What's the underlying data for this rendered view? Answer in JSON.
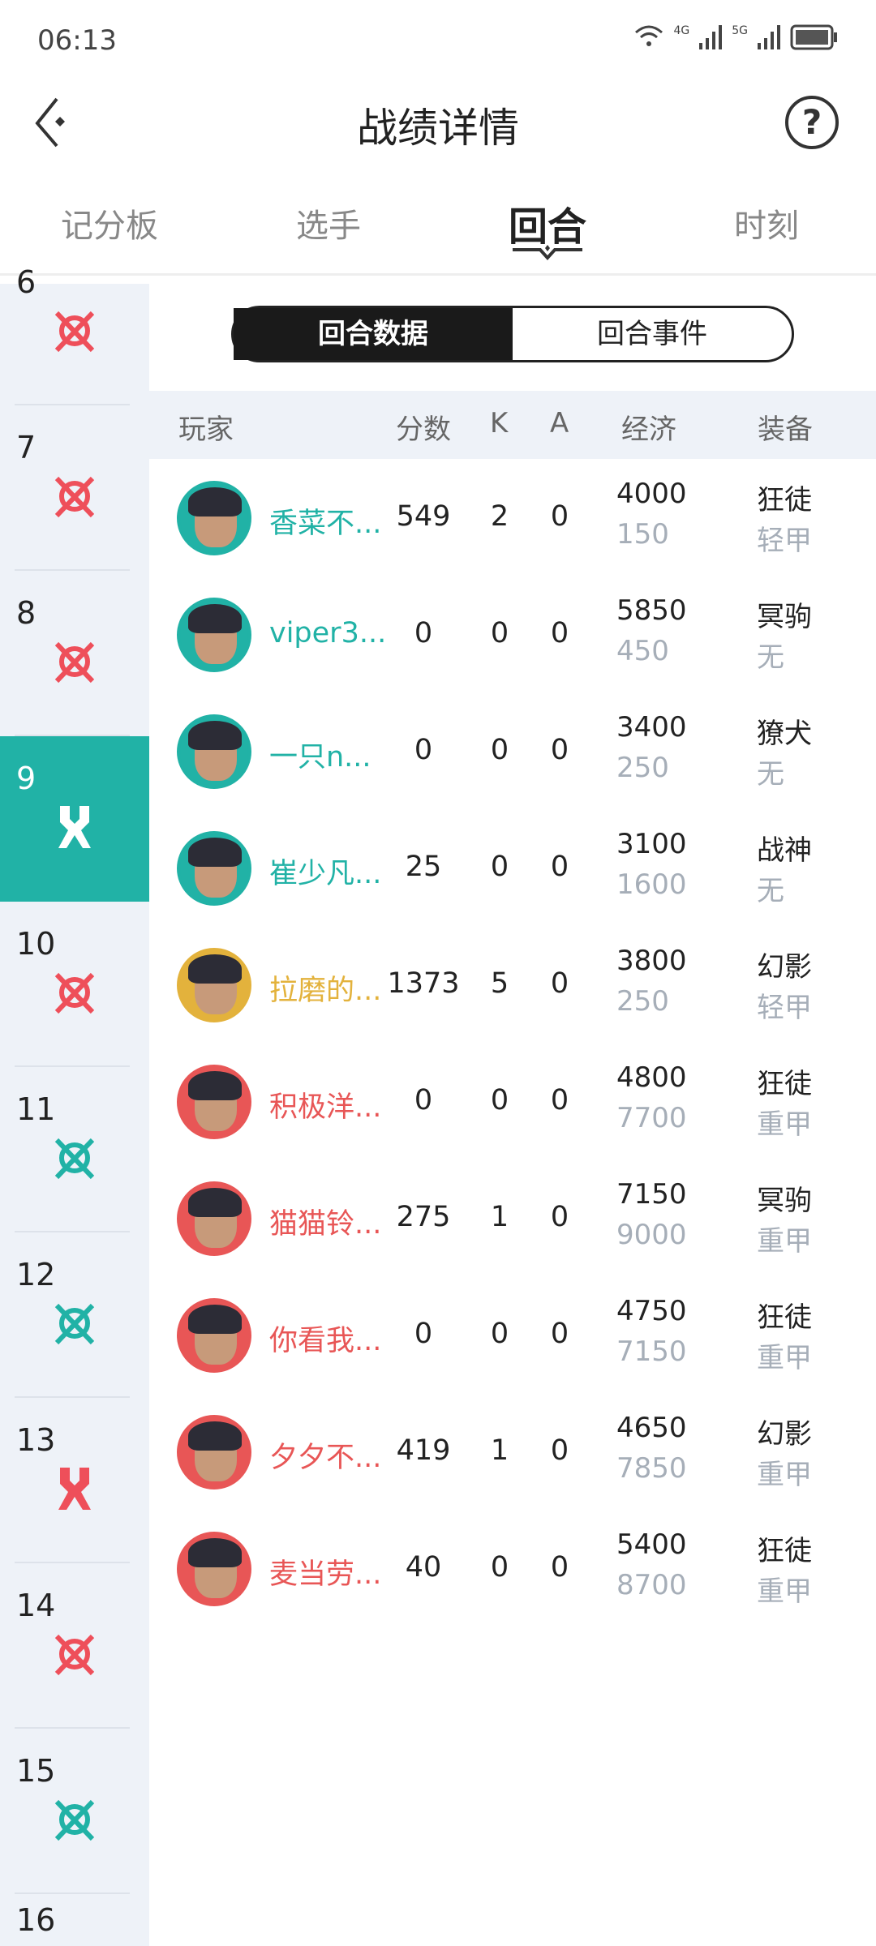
{
  "status_bar": {
    "time": "06:13",
    "net1": "4G",
    "net2": "5G"
  },
  "header": {
    "title": "战绩详情",
    "back_icon": "back-arrow-icon",
    "help_icon": "question-circle-icon",
    "help_glyph": "?"
  },
  "tabs": [
    {
      "label": "记分板",
      "active": false
    },
    {
      "label": "选手",
      "active": false
    },
    {
      "label": "回合",
      "active": true
    },
    {
      "label": "时刻",
      "active": false
    }
  ],
  "rounds": [
    {
      "num": "6",
      "icon": "elimination-icon",
      "color": "#ee4f5a"
    },
    {
      "num": "7",
      "icon": "elimination-icon",
      "color": "#ee4f5a"
    },
    {
      "num": "8",
      "icon": "elimination-icon",
      "color": "#ee4f5a"
    },
    {
      "num": "9",
      "icon": "defuse-icon",
      "color": "#ffffff",
      "selected": true
    },
    {
      "num": "10",
      "icon": "elimination-icon",
      "color": "#ee4f5a"
    },
    {
      "num": "11",
      "icon": "elimination-icon",
      "color": "#21b2a6"
    },
    {
      "num": "12",
      "icon": "elimination-icon",
      "color": "#21b2a6"
    },
    {
      "num": "13",
      "icon": "defuse-icon",
      "color": "#ee4f5a"
    },
    {
      "num": "14",
      "icon": "elimination-icon",
      "color": "#ee4f5a"
    },
    {
      "num": "15",
      "icon": "elimination-icon",
      "color": "#21b2a6"
    },
    {
      "num": "16",
      "icon": "",
      "color": ""
    }
  ],
  "segment": {
    "options": [
      "回合数据",
      "回合事件"
    ],
    "selected": 0
  },
  "table": {
    "headers": {
      "player": "玩家",
      "score": "分数",
      "k": "K",
      "a": "A",
      "economy": "经济",
      "equipment": "装备"
    },
    "rows": [
      {
        "name": "香菜不...",
        "team_color": "#21b2a6",
        "score": "549",
        "k": "2",
        "a": "0",
        "eco": "4000",
        "eco_sub": "150",
        "weapon": "狂徒",
        "armor": "轻甲"
      },
      {
        "name": "viper3...",
        "team_color": "#21b2a6",
        "score": "0",
        "k": "0",
        "a": "0",
        "eco": "5850",
        "eco_sub": "450",
        "weapon": "冥驹",
        "armor": "无"
      },
      {
        "name": "一只n...",
        "team_color": "#21b2a6",
        "score": "0",
        "k": "0",
        "a": "0",
        "eco": "3400",
        "eco_sub": "250",
        "weapon": "獠犬",
        "armor": "无"
      },
      {
        "name": "崔少凡...",
        "team_color": "#21b2a6",
        "score": "25",
        "k": "0",
        "a": "0",
        "eco": "3100",
        "eco_sub": "1600",
        "weapon": "战神",
        "armor": "无"
      },
      {
        "name": "拉磨的...",
        "team_color": "#e3b23c",
        "score": "1373",
        "k": "5",
        "a": "0",
        "eco": "3800",
        "eco_sub": "250",
        "weapon": "幻影",
        "armor": "轻甲"
      },
      {
        "name": "积极洋...",
        "team_color": "#e85656",
        "score": "0",
        "k": "0",
        "a": "0",
        "eco": "4800",
        "eco_sub": "7700",
        "weapon": "狂徒",
        "armor": "重甲"
      },
      {
        "name": "猫猫铃...",
        "team_color": "#e85656",
        "score": "275",
        "k": "1",
        "a": "0",
        "eco": "7150",
        "eco_sub": "9000",
        "weapon": "冥驹",
        "armor": "重甲"
      },
      {
        "name": "你看我...",
        "team_color": "#e85656",
        "score": "0",
        "k": "0",
        "a": "0",
        "eco": "4750",
        "eco_sub": "7150",
        "weapon": "狂徒",
        "armor": "重甲"
      },
      {
        "name": "夕夕不...",
        "team_color": "#e85656",
        "score": "419",
        "k": "1",
        "a": "0",
        "eco": "4650",
        "eco_sub": "7850",
        "weapon": "幻影",
        "armor": "重甲"
      },
      {
        "name": "麦当劳...",
        "team_color": "#e85656",
        "score": "40",
        "k": "0",
        "a": "0",
        "eco": "5400",
        "eco_sub": "8700",
        "weapon": "狂徒",
        "armor": "重甲"
      }
    ]
  }
}
